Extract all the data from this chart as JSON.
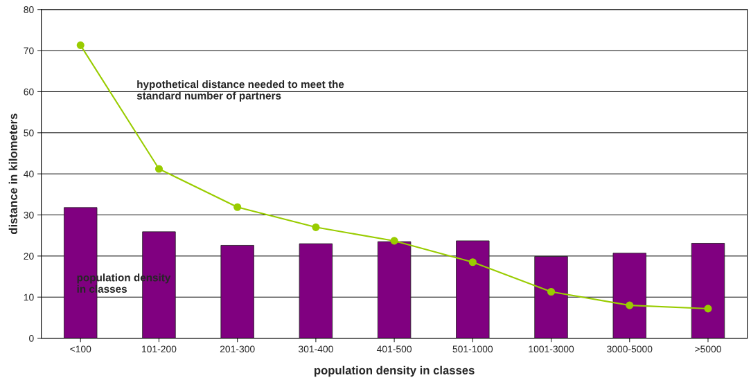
{
  "chart_data": {
    "type": "bar",
    "xlabel": "population density in classes",
    "ylabel": "distance in kilometers",
    "categories": [
      "<100",
      "101-200",
      "201-300",
      "301-400",
      "401-500",
      "501-1000",
      "1001-3000",
      "3000-5000",
      ">5000"
    ],
    "series": [
      {
        "name": "population density\nin classes",
        "color": "#800080",
        "values": [
          31.8,
          25.9,
          22.6,
          23.0,
          23.5,
          23.7,
          19.9,
          20.7,
          23.1
        ]
      },
      {
        "name": "hypothetical distance needed to meet the\nstandard number of partners",
        "type": "line",
        "color": "#99cc00",
        "marker": "circle",
        "values": [
          71.3,
          41.2,
          31.9,
          27.0,
          23.7,
          18.5,
          11.3,
          8.0,
          7.2
        ]
      }
    ],
    "ylim": [
      0,
      80
    ],
    "yticks": [
      0,
      10,
      20,
      30,
      40,
      50,
      60,
      70,
      80
    ],
    "grid": "y",
    "legend": false
  }
}
